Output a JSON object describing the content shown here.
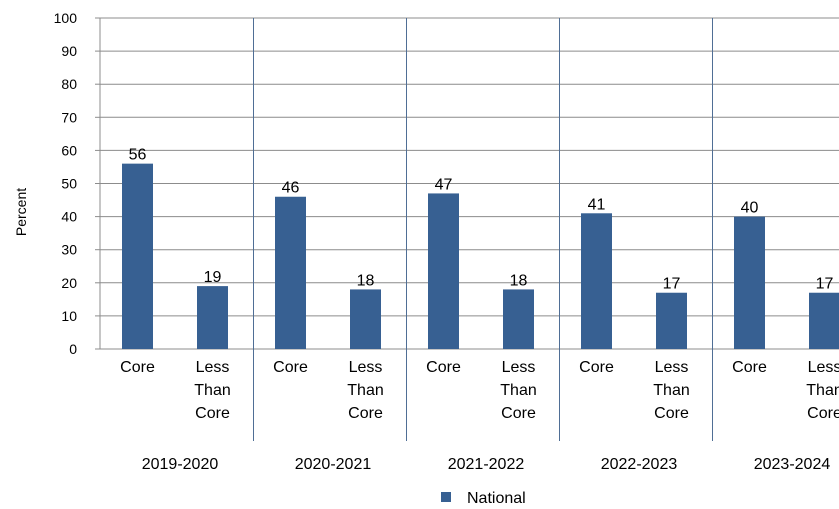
{
  "chart_data": {
    "type": "bar",
    "title": "",
    "ylabel": "Percent",
    "xlabel": "",
    "ylim": [
      0,
      100
    ],
    "yticks": [
      0,
      10,
      20,
      30,
      40,
      50,
      60,
      70,
      80,
      90,
      100
    ],
    "grid": true,
    "legend_position": "bottom",
    "groups": [
      "2019-2020",
      "2020-2021",
      "2021-2022",
      "2022-2023",
      "2023-2024"
    ],
    "categories": [
      [
        "Core"
      ],
      [
        "Less",
        "Than",
        "Core"
      ]
    ],
    "series": [
      {
        "name": "National",
        "color": "#376092",
        "values": [
          [
            56,
            19
          ],
          [
            46,
            18
          ],
          [
            47,
            18
          ],
          [
            41,
            17
          ],
          [
            40,
            17
          ]
        ]
      }
    ]
  }
}
